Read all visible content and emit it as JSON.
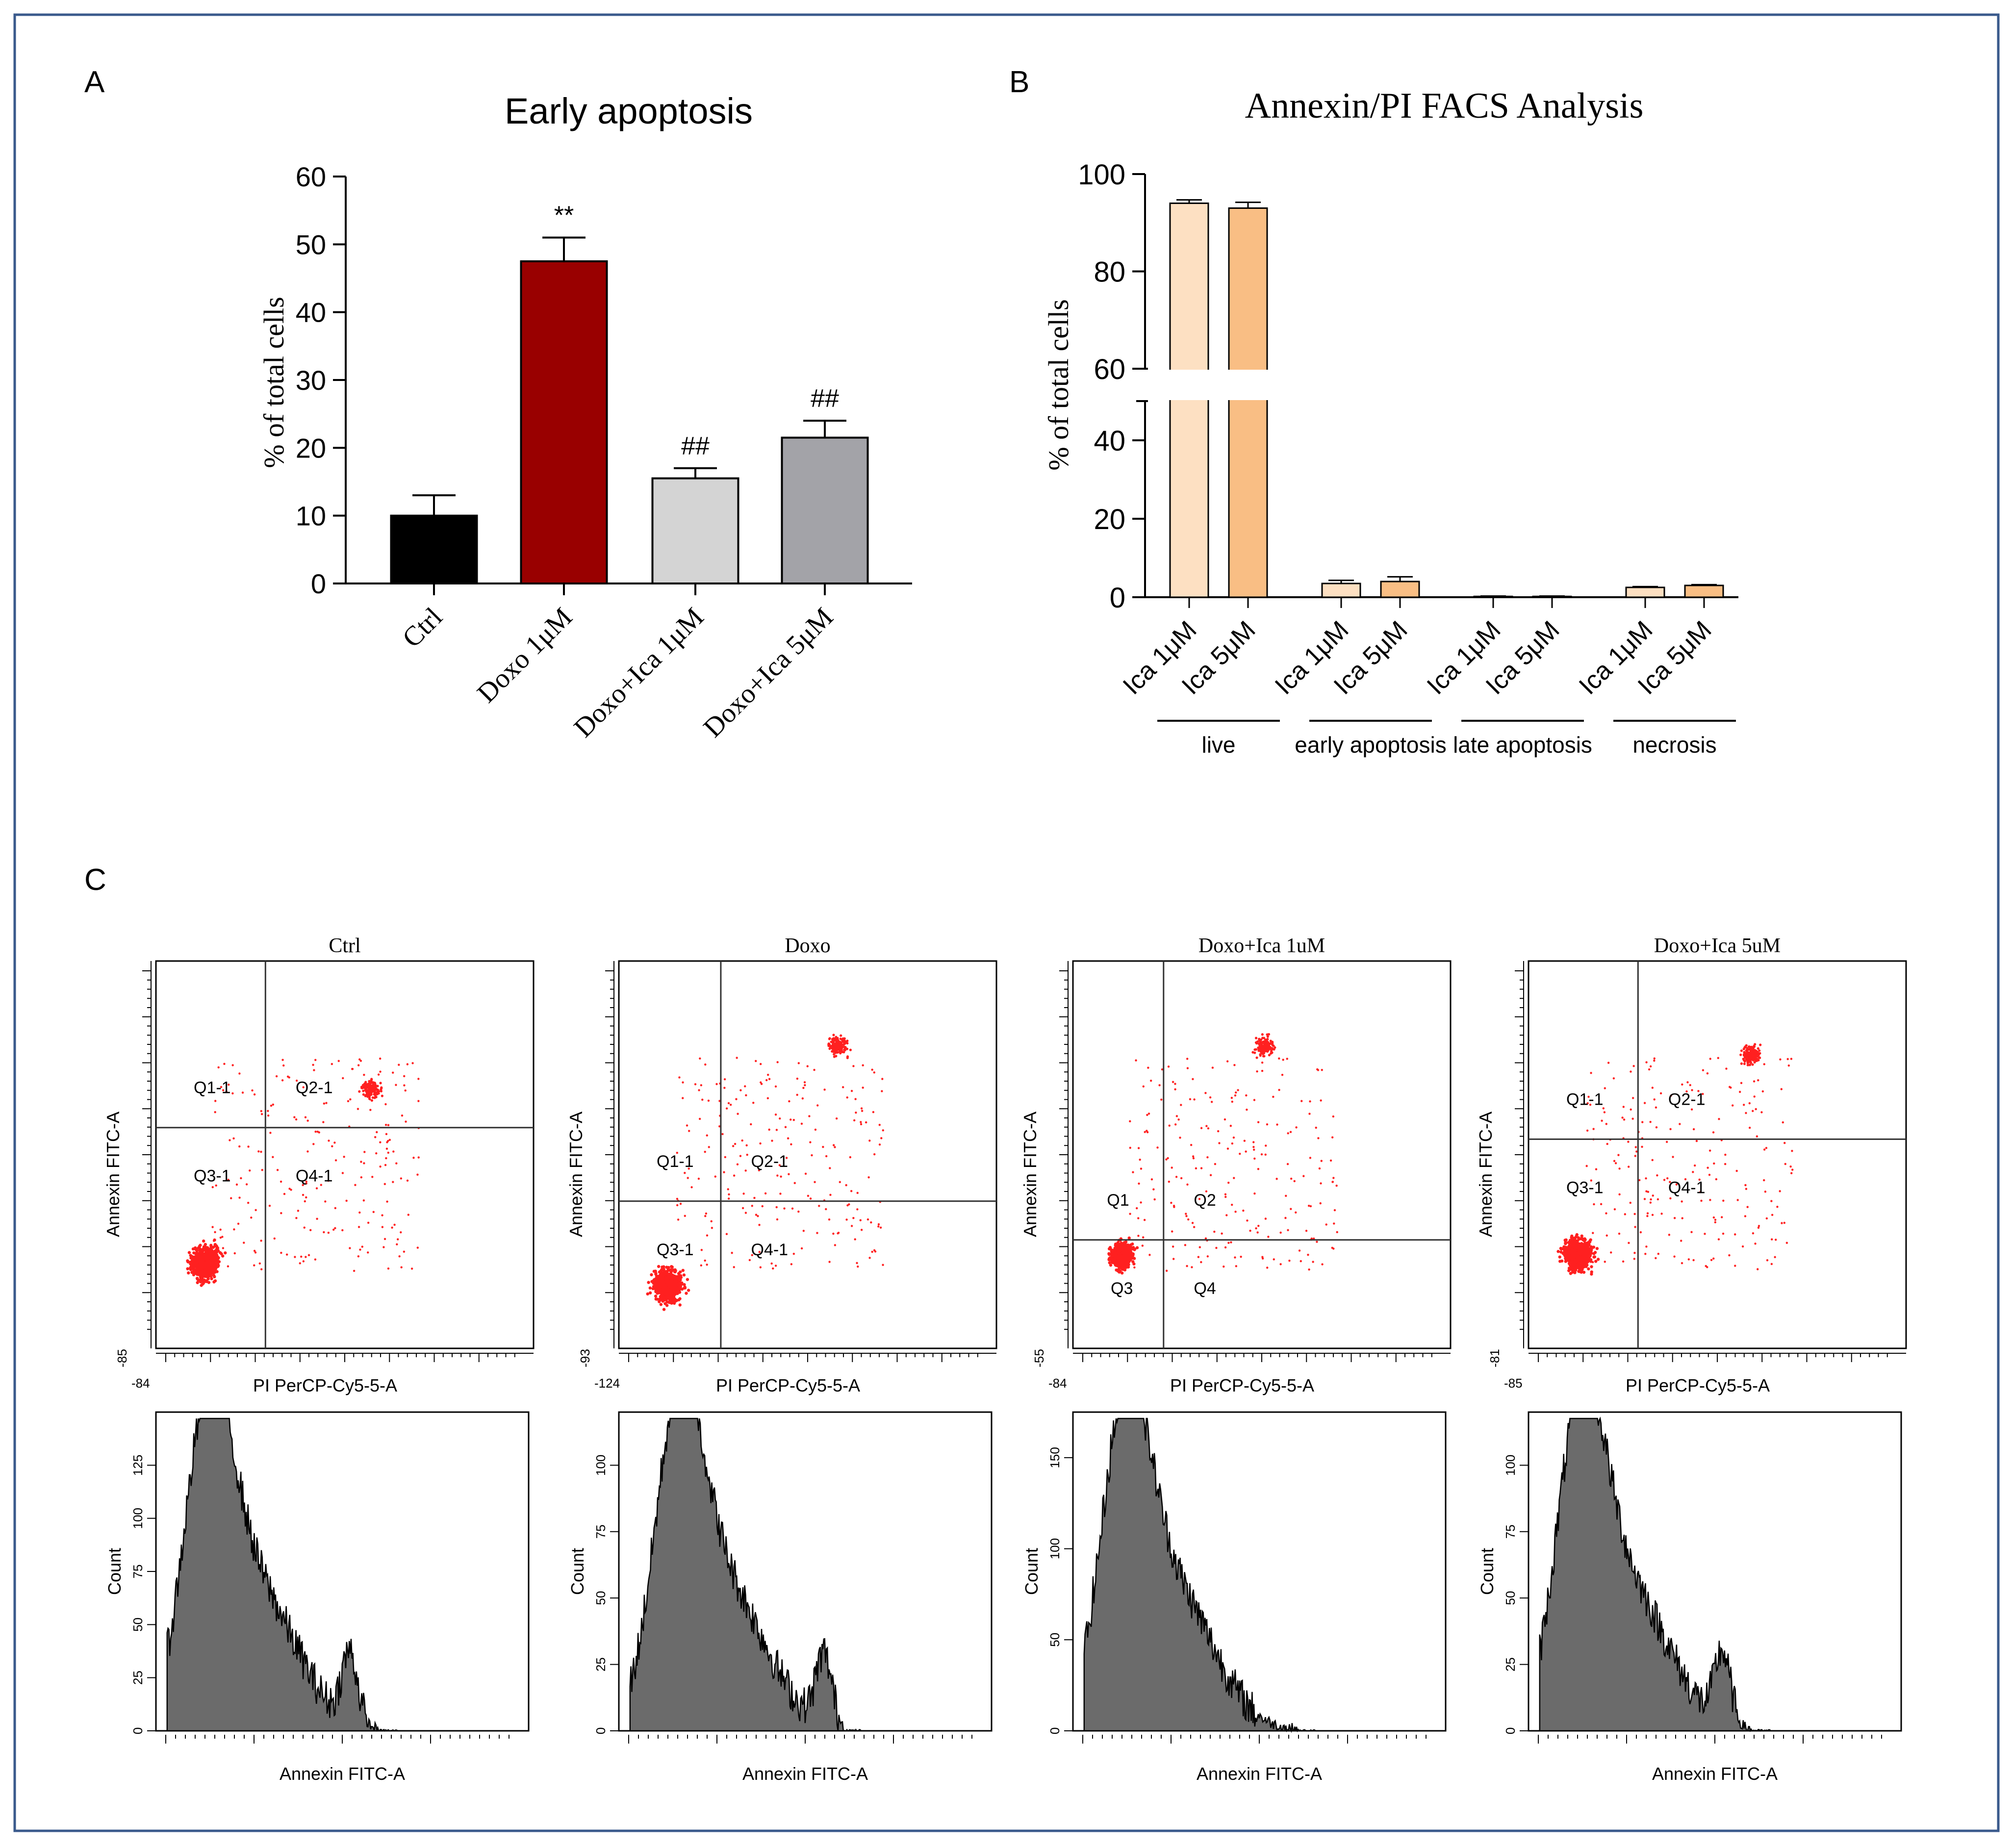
{
  "figure": {
    "panel_labels": [
      "A",
      "B",
      "C"
    ]
  },
  "chart_data": [
    {
      "id": "A",
      "type": "bar",
      "title": "Early apoptosis",
      "xlabel": "",
      "ylabel": "% of total cells",
      "ylim": [
        0,
        60
      ],
      "yticks": [
        "0",
        "10",
        "20",
        "30",
        "40",
        "50",
        "60"
      ],
      "categories": [
        "Ctrl",
        "Doxo 1μM",
        "Doxo+Ica 1μM",
        "Doxo+Ica 5μM"
      ],
      "values": [
        10,
        47.5,
        15.5,
        21.5
      ],
      "errors": [
        3,
        3.5,
        1.5,
        2.5
      ],
      "annotations": [
        "",
        "**",
        "##",
        "##"
      ],
      "colors": [
        "#000000",
        "#990000",
        "#d4d4d4",
        "#a3a3a8"
      ]
    },
    {
      "id": "B",
      "type": "bar",
      "title": "Annexin/PI FACS Analysis",
      "ylabel": "% of total cells",
      "ylim": [
        0,
        100
      ],
      "axis_break": [
        50,
        60
      ],
      "yticks": [
        "0",
        "20",
        "40",
        "60",
        "80",
        "100"
      ],
      "groups": [
        "live",
        "early apoptosis",
        "late apoptosis",
        "necrosis"
      ],
      "series": [
        {
          "name": "Ica 1μM",
          "color": "#fde0c2",
          "values": [
            94,
            3.5,
            0.2,
            2.5
          ],
          "errors": [
            0.7,
            0.8,
            0.1,
            0.2
          ]
        },
        {
          "name": "Ica 5μM",
          "color": "#f9be84",
          "values": [
            93,
            4,
            0.2,
            3
          ],
          "errors": [
            1.2,
            1.2,
            0.1,
            0.2
          ]
        }
      ]
    },
    {
      "id": "C-scatter",
      "type": "scatter",
      "xlabel": "PI PerCP-Cy5-5-A",
      "ylabel": "Annexin FITC-A",
      "xscale": "log",
      "yscale": "log",
      "plots": [
        {
          "title": "Ctrl",
          "quadrants": [
            "Q1-1",
            "Q2-1",
            "Q3-1",
            "Q4-1"
          ],
          "x_min_label": "-84",
          "y_min_label": "-85"
        },
        {
          "title": "Doxo",
          "quadrants": [
            "Q1-1",
            "Q2-1",
            "Q3-1",
            "Q4-1"
          ],
          "x_min_label": "-124",
          "y_min_label": "-93"
        },
        {
          "title": "Doxo+Ica 1uM",
          "quadrants": [
            "Q1",
            "Q2",
            "Q3",
            "Q4"
          ],
          "x_min_label": "-84",
          "y_min_label": "-55",
          "ylabel": "Annexin FITC-A"
        },
        {
          "title": "Doxo+Ica 5uM",
          "quadrants": [
            "Q1-1",
            "Q2-1",
            "Q3-1",
            "Q4-1"
          ],
          "x_min_label": "-85",
          "y_min_label": "-81"
        }
      ]
    },
    {
      "id": "C-histogram",
      "type": "area",
      "xlabel": "Annexin FITC-A",
      "ylabel": "Count",
      "plots": [
        {
          "title": "Ctrl",
          "yticks": [
            "0",
            "25",
            "50",
            "75",
            "100",
            "125"
          ],
          "ymax": 150
        },
        {
          "title": "Doxo",
          "yticks": [
            "0",
            "25",
            "50",
            "75",
            "100"
          ],
          "ymax": 120
        },
        {
          "title": "Doxo+Ica 1uM",
          "yticks": [
            "0",
            "50",
            "100",
            "150"
          ],
          "ymax": 175
        },
        {
          "title": "Doxo+Ica 5uM",
          "yticks": [
            "0",
            "25",
            "50",
            "75",
            "100"
          ],
          "ymax": 120
        }
      ]
    }
  ]
}
